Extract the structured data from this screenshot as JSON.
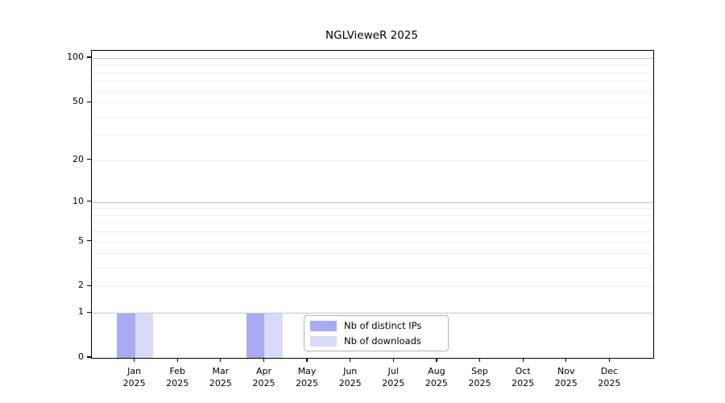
{
  "chart_data": {
    "type": "bar",
    "title": "NGLVieweR 2025",
    "categories": [
      "Jan 2025",
      "Feb 2025",
      "Mar 2025",
      "Apr 2025",
      "May 2025",
      "Jun 2025",
      "Jul 2025",
      "Aug 2025",
      "Sep 2025",
      "Oct 2025",
      "Nov 2025",
      "Dec 2025"
    ],
    "series": [
      {
        "name": "Nb of distinct IPs",
        "color": "#a9aaf3",
        "values": [
          1,
          0,
          0,
          1,
          0,
          0,
          0,
          0,
          0,
          0,
          0,
          0
        ]
      },
      {
        "name": "Nb of downloads",
        "color": "#d9daf8",
        "values": [
          1,
          0,
          0,
          1,
          0,
          0,
          0,
          0,
          0,
          0,
          0,
          0
        ]
      }
    ],
    "xlabel": "",
    "ylabel": "",
    "yscale": "log1p",
    "ylim": [
      0,
      112
    ],
    "ytick_values": [
      0,
      1,
      2,
      5,
      10,
      20,
      50,
      100
    ],
    "grid": {
      "major": [
        1,
        10,
        100
      ],
      "minor": [
        2,
        3,
        4,
        5,
        6,
        7,
        8,
        9,
        20,
        30,
        40,
        50,
        60,
        70,
        80,
        90
      ]
    },
    "legend_position": "bottom-center-inside"
  },
  "colors": {
    "background": "#ffffff",
    "axis": "#000000",
    "major_grid": "#c6c6c6",
    "minor_grid": "#ededed",
    "tick_text": "#000000",
    "legend_border": "#b3b3b3"
  }
}
